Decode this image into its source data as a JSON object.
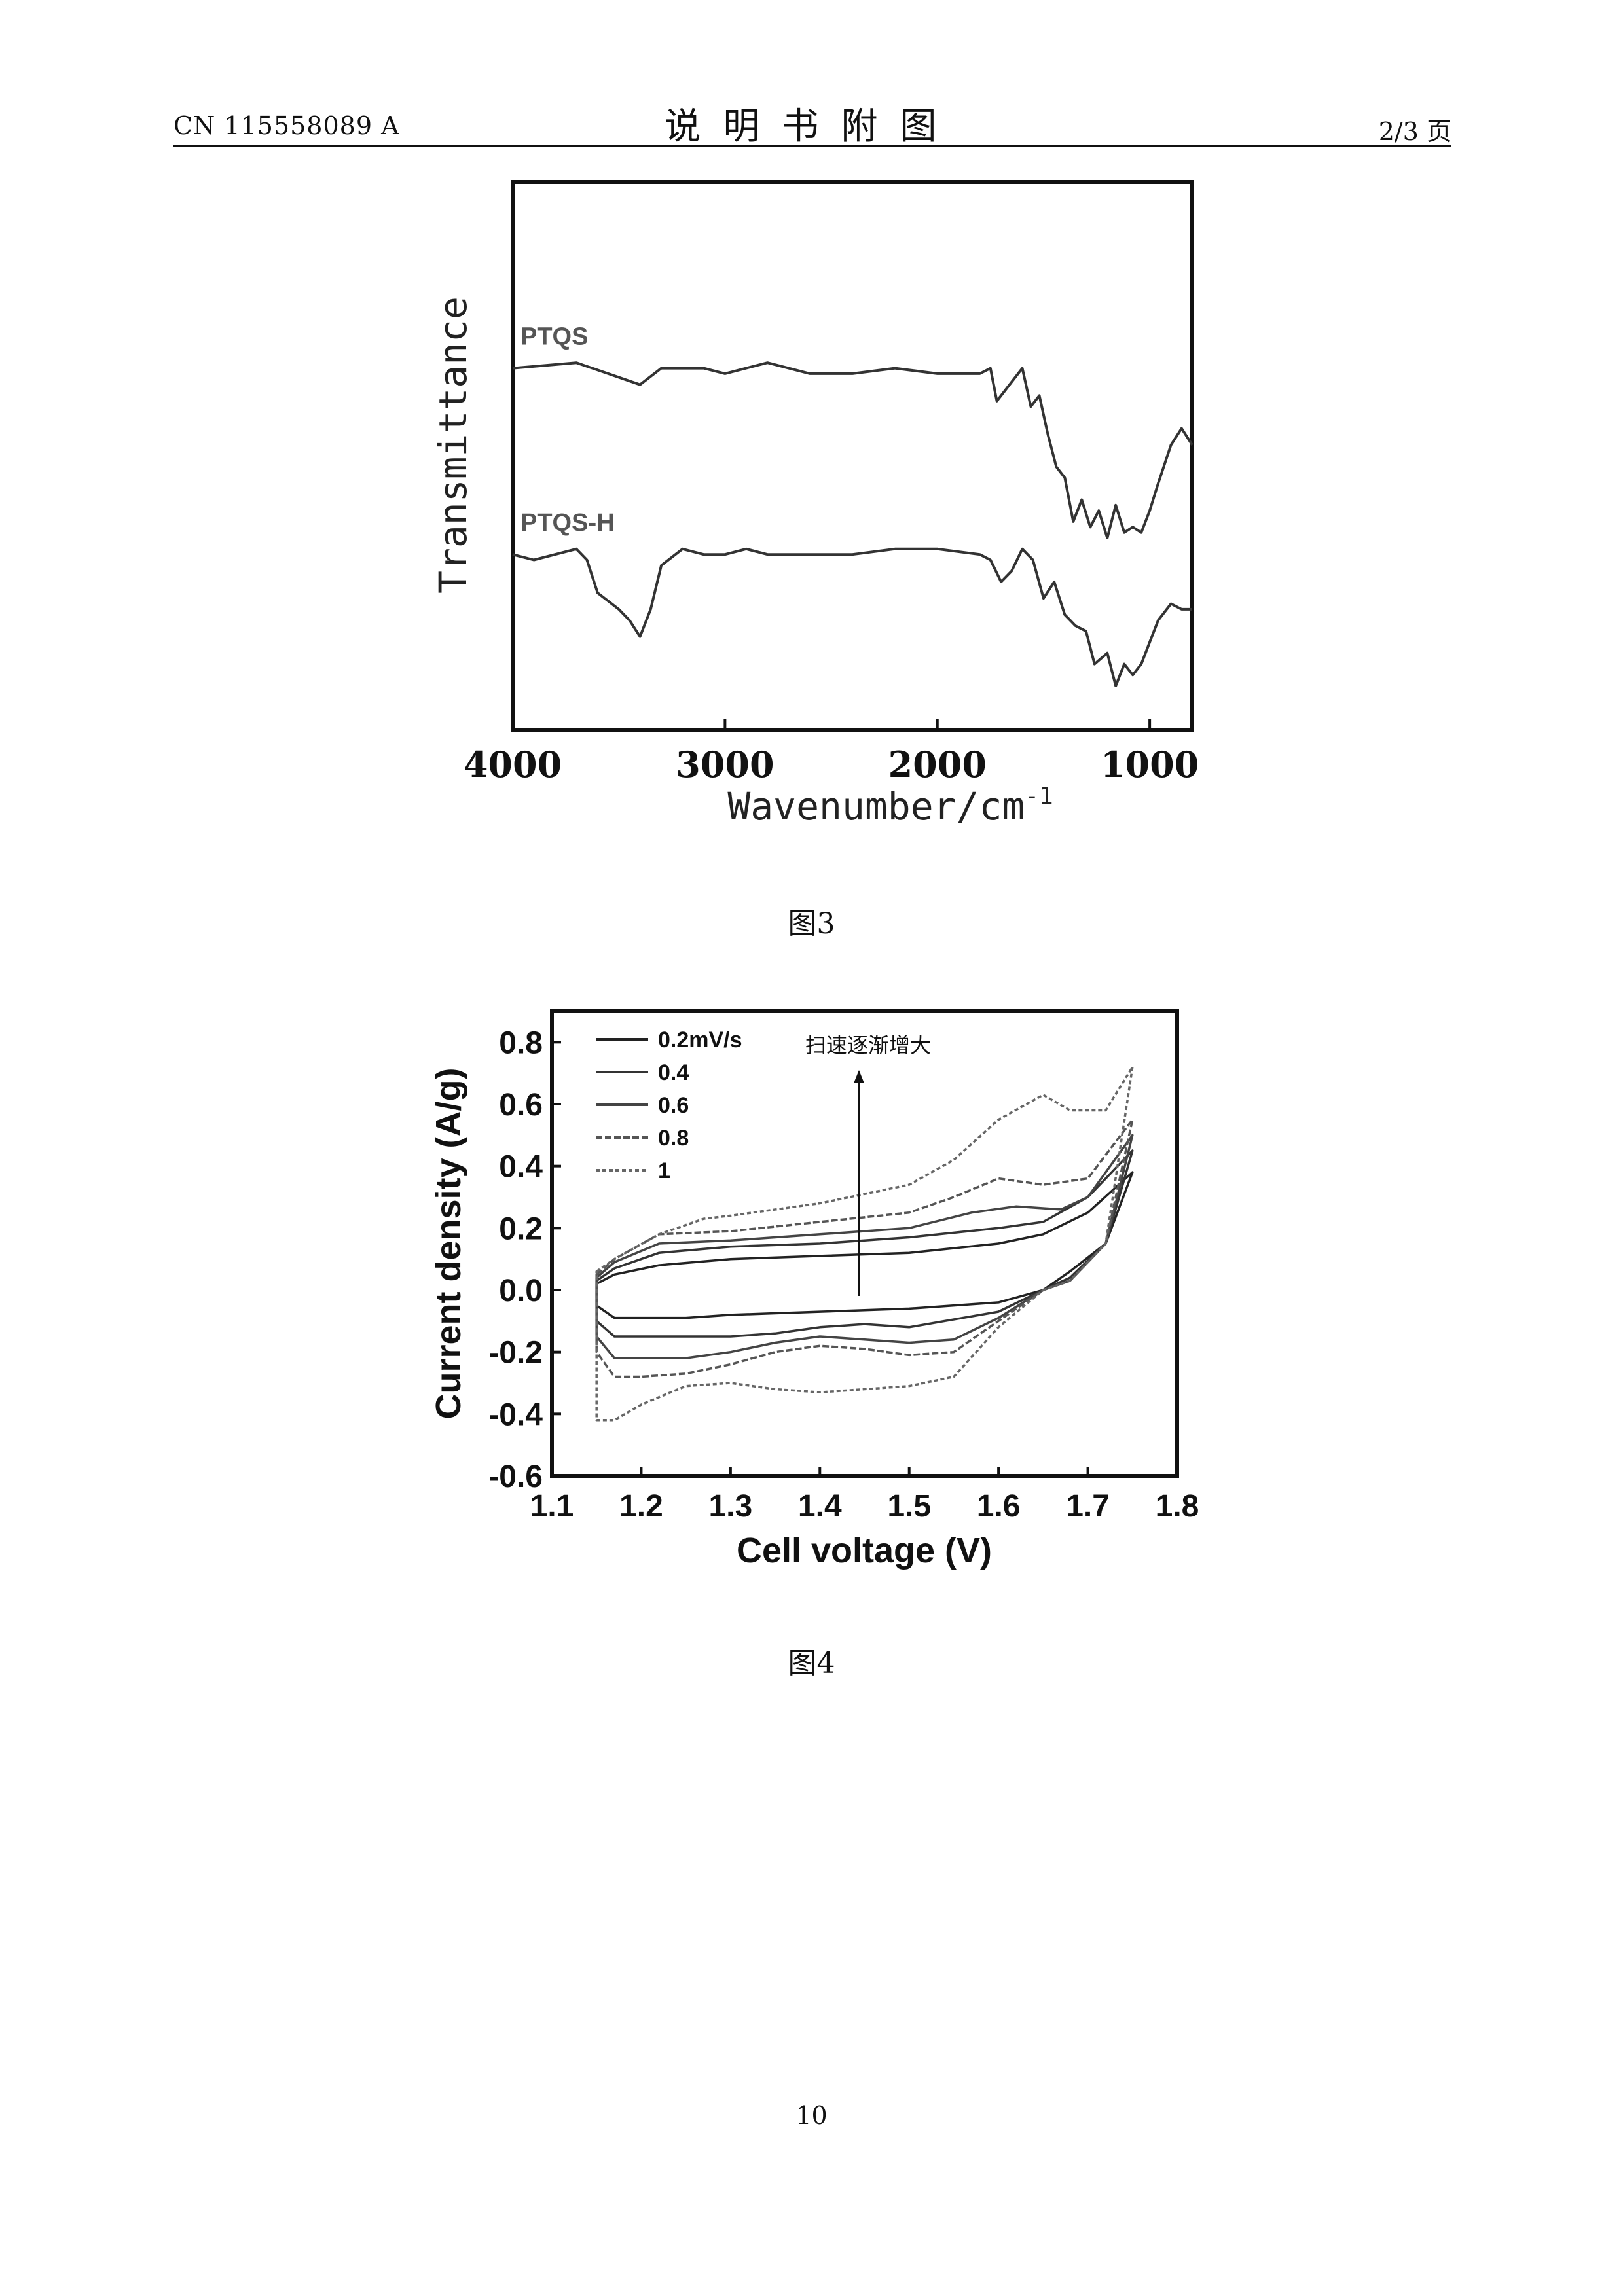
{
  "header": {
    "doc_id": "CN 115558089 A",
    "title": "说明书附图",
    "page_of": "2/3 页"
  },
  "figures": [
    {
      "caption": "图3"
    },
    {
      "caption": "图4"
    }
  ],
  "page_number": "10",
  "chart_data": [
    {
      "type": "line",
      "xlabel": "Wavenumber/cm",
      "xlabel_sup": "-1",
      "ylabel": "Transmittance",
      "xlim": [
        4000,
        800
      ],
      "ylim": [
        0,
        100
      ],
      "xticks": [
        4000,
        3000,
        2000,
        1000
      ],
      "grid": false,
      "series": [
        {
          "name": "PTQS",
          "x": [
            4000,
            3700,
            3550,
            3400,
            3300,
            3100,
            3000,
            2800,
            2600,
            2400,
            2200,
            2000,
            1800,
            1750,
            1720,
            1680,
            1640,
            1600,
            1560,
            1520,
            1480,
            1440,
            1400,
            1360,
            1320,
            1280,
            1240,
            1200,
            1160,
            1120,
            1080,
            1040,
            1000,
            960,
            900,
            850,
            800
          ],
          "y": [
            66,
            67,
            65,
            63,
            66,
            66,
            65,
            67,
            65,
            65,
            66,
            65,
            65,
            66,
            60,
            62,
            64,
            66,
            59,
            61,
            54,
            48,
            46,
            38,
            42,
            37,
            40,
            35,
            41,
            36,
            37,
            36,
            40,
            45,
            52,
            55,
            52
          ]
        },
        {
          "name": "PTQS-H",
          "x": [
            4000,
            3900,
            3800,
            3700,
            3650,
            3600,
            3500,
            3450,
            3400,
            3350,
            3300,
            3200,
            3100,
            3000,
            2900,
            2800,
            2600,
            2400,
            2200,
            2000,
            1800,
            1750,
            1700,
            1650,
            1600,
            1550,
            1500,
            1450,
            1400,
            1350,
            1300,
            1260,
            1200,
            1160,
            1120,
            1080,
            1040,
            1000,
            960,
            900,
            850,
            800
          ],
          "y": [
            32,
            31,
            32,
            33,
            31,
            25,
            22,
            20,
            17,
            22,
            30,
            33,
            32,
            32,
            33,
            32,
            32,
            32,
            33,
            33,
            32,
            31,
            27,
            29,
            33,
            31,
            24,
            27,
            21,
            19,
            18,
            12,
            14,
            8,
            12,
            10,
            12,
            16,
            20,
            23,
            22,
            22
          ]
        }
      ]
    },
    {
      "type": "line",
      "xlabel": "Cell voltage (V)",
      "ylabel": "Current density (A/g)",
      "xlim": [
        1.1,
        1.8
      ],
      "ylim": [
        -0.6,
        0.9
      ],
      "xticks": [
        1.1,
        1.2,
        1.3,
        1.4,
        1.5,
        1.6,
        1.7,
        1.8
      ],
      "yticks": [
        -0.6,
        -0.4,
        -0.2,
        0.0,
        0.2,
        0.4,
        0.6,
        0.8
      ],
      "xtick_labels": [
        "1.1",
        "1.2",
        "1.3",
        "1.4",
        "1.5",
        "1.6",
        "1.7",
        "1.8"
      ],
      "ytick_labels": [
        "-0.6",
        "-0.4",
        "-0.2",
        "0.0",
        "0.2",
        "0.4",
        "0.6",
        "0.8"
      ],
      "grid": false,
      "legend": {
        "position": "top-left",
        "labels": [
          "0.2mV/s",
          "0.4",
          "0.6",
          "0.8",
          "1"
        ]
      },
      "annotation": {
        "text": "扫速逐渐增大",
        "arrow": "up"
      },
      "series": [
        {
          "name": "0.2mV/s",
          "x": [
            1.15,
            1.17,
            1.22,
            1.3,
            1.4,
            1.5,
            1.6,
            1.65,
            1.7,
            1.75,
            1.72,
            1.68,
            1.65,
            1.6,
            1.5,
            1.4,
            1.35,
            1.3,
            1.25,
            1.2,
            1.17,
            1.15
          ],
          "y": [
            0.02,
            0.05,
            0.08,
            0.1,
            0.11,
            0.12,
            0.15,
            0.18,
            0.25,
            0.38,
            0.15,
            0.06,
            0.0,
            -0.04,
            -0.06,
            -0.07,
            -0.075,
            -0.08,
            -0.09,
            -0.09,
            -0.09,
            -0.05
          ]
        },
        {
          "name": "0.4",
          "x": [
            1.15,
            1.17,
            1.22,
            1.3,
            1.4,
            1.5,
            1.6,
            1.65,
            1.7,
            1.75,
            1.72,
            1.68,
            1.65,
            1.6,
            1.5,
            1.45,
            1.4,
            1.35,
            1.3,
            1.25,
            1.2,
            1.17,
            1.15
          ],
          "y": [
            0.03,
            0.07,
            0.12,
            0.14,
            0.15,
            0.17,
            0.2,
            0.22,
            0.3,
            0.45,
            0.15,
            0.04,
            0.0,
            -0.07,
            -0.12,
            -0.11,
            -0.12,
            -0.14,
            -0.15,
            -0.15,
            -0.15,
            -0.15,
            -0.1
          ]
        },
        {
          "name": "0.6",
          "x": [
            1.15,
            1.17,
            1.22,
            1.3,
            1.4,
            1.5,
            1.57,
            1.62,
            1.67,
            1.7,
            1.75,
            1.72,
            1.68,
            1.65,
            1.6,
            1.55,
            1.5,
            1.45,
            1.4,
            1.35,
            1.3,
            1.25,
            1.2,
            1.17,
            1.15
          ],
          "y": [
            0.04,
            0.09,
            0.15,
            0.16,
            0.18,
            0.2,
            0.25,
            0.27,
            0.26,
            0.3,
            0.5,
            0.15,
            0.03,
            0.0,
            -0.09,
            -0.16,
            -0.17,
            -0.16,
            -0.15,
            -0.17,
            -0.2,
            -0.22,
            -0.22,
            -0.22,
            -0.15
          ]
        },
        {
          "name": "0.8",
          "x": [
            1.15,
            1.17,
            1.22,
            1.3,
            1.4,
            1.5,
            1.55,
            1.6,
            1.65,
            1.7,
            1.75,
            1.72,
            1.68,
            1.65,
            1.6,
            1.55,
            1.5,
            1.45,
            1.4,
            1.35,
            1.3,
            1.25,
            1.2,
            1.17,
            1.15
          ],
          "y": [
            0.05,
            0.1,
            0.18,
            0.19,
            0.22,
            0.25,
            0.3,
            0.36,
            0.34,
            0.36,
            0.55,
            0.15,
            0.03,
            0.0,
            -0.1,
            -0.2,
            -0.21,
            -0.19,
            -0.18,
            -0.2,
            -0.24,
            -0.27,
            -0.28,
            -0.28,
            -0.2
          ]
        },
        {
          "name": "1",
          "x": [
            1.15,
            1.17,
            1.22,
            1.27,
            1.3,
            1.4,
            1.5,
            1.55,
            1.6,
            1.65,
            1.68,
            1.72,
            1.75,
            1.72,
            1.68,
            1.65,
            1.6,
            1.55,
            1.5,
            1.45,
            1.4,
            1.35,
            1.3,
            1.25,
            1.2,
            1.17,
            1.15
          ],
          "y": [
            0.06,
            0.1,
            0.18,
            0.23,
            0.24,
            0.28,
            0.34,
            0.42,
            0.55,
            0.63,
            0.58,
            0.58,
            0.72,
            0.15,
            0.03,
            0.0,
            -0.12,
            -0.28,
            -0.31,
            -0.32,
            -0.33,
            -0.32,
            -0.3,
            -0.31,
            -0.37,
            -0.42,
            -0.42
          ]
        }
      ]
    }
  ]
}
